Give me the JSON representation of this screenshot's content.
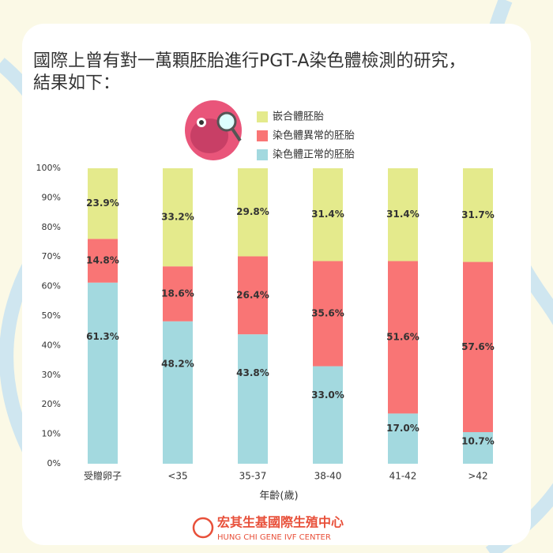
{
  "chart_data": {
    "type": "stacked_bar",
    "title": [
      "國際上曾有對一萬顆胚胎進行PGT-A染色體檢測的研究，",
      "結果如下："
    ],
    "categories": [
      "受贈卵子",
      "<35",
      "35-37",
      "38-40",
      "41-42",
      ">42"
    ],
    "series": [
      {
        "name": "染色體正常的胚胎",
        "color": "#a3d9df",
        "values": [
          61.3,
          48.2,
          43.8,
          33.0,
          17.0,
          10.7
        ],
        "value_labels": [
          "61.3%",
          "48.2%",
          "43.8%",
          "33.0%",
          "17.0%",
          "10.7%"
        ]
      },
      {
        "name": "染色體異常的胚胎",
        "color": "#f97575",
        "values": [
          14.8,
          18.6,
          26.4,
          35.6,
          51.6,
          57.6
        ],
        "value_labels": [
          "14.8%",
          "18.6%",
          "26.4%",
          "35.6%",
          "51.6%",
          "57.6%"
        ]
      },
      {
        "name": "嵌合體胚胎",
        "color": "#e4ea8c",
        "values": [
          23.9,
          33.2,
          29.8,
          31.4,
          31.4,
          31.7
        ],
        "value_labels": [
          "23.9%",
          "33.2%",
          "29.8%",
          "31.4%",
          "31.4%",
          "31.7%"
        ]
      }
    ],
    "x_label": "年齡(歲)",
    "ylim": [
      0,
      100
    ],
    "yticks": [
      {
        "value": 0,
        "label": "0%"
      },
      {
        "value": 10,
        "label": "10%"
      },
      {
        "value": 20,
        "label": "20%"
      },
      {
        "value": 30,
        "label": "30%"
      },
      {
        "value": 40,
        "label": "40%"
      },
      {
        "value": 50,
        "label": "50%"
      },
      {
        "value": 60,
        "label": "60%"
      },
      {
        "value": 70,
        "label": "70%"
      },
      {
        "value": 80,
        "label": "80%"
      },
      {
        "value": 90,
        "label": "90%"
      },
      {
        "value": 100,
        "label": "100%"
      }
    ],
    "legend": "top-right",
    "footer": {
      "name": "宏其生基國際生殖中心",
      "name_en": "HUNG CHI GENE IVF CENTER"
    }
  }
}
